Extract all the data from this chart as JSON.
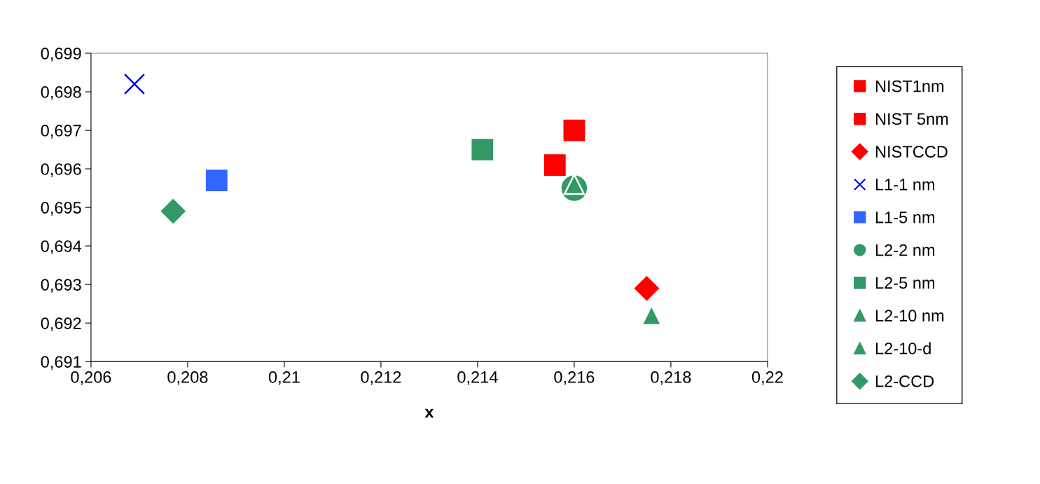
{
  "chart_data": {
    "type": "scatter",
    "xlabel": "x",
    "grid": false,
    "legend": "right",
    "xlim": [
      0.206,
      0.22
    ],
    "ylim": [
      0.691,
      0.699
    ],
    "xticks": [
      {
        "value": 0.206,
        "label": "0,206"
      },
      {
        "value": 0.208,
        "label": "0,208"
      },
      {
        "value": 0.21,
        "label": "0,21"
      },
      {
        "value": 0.212,
        "label": "0,212"
      },
      {
        "value": 0.214,
        "label": "0,214"
      },
      {
        "value": 0.216,
        "label": "0,216"
      },
      {
        "value": 0.218,
        "label": "0,218"
      },
      {
        "value": 0.22,
        "label": "0,22"
      }
    ],
    "yticks": [
      {
        "value": 0.691,
        "label": "0,691"
      },
      {
        "value": 0.692,
        "label": "0,692"
      },
      {
        "value": 0.693,
        "label": "0,693"
      },
      {
        "value": 0.694,
        "label": "0,694"
      },
      {
        "value": 0.695,
        "label": "0,695"
      },
      {
        "value": 0.696,
        "label": "0,696"
      },
      {
        "value": 0.697,
        "label": "0,697"
      },
      {
        "value": 0.698,
        "label": "0,698"
      },
      {
        "value": 0.699,
        "label": "0,699"
      }
    ],
    "series": [
      {
        "name": "NIST1nm",
        "marker": "square",
        "color": "#ff0000",
        "x": [
          0.216
        ],
        "values": [
          0.697
        ]
      },
      {
        "name": "NIST 5nm",
        "marker": "square",
        "color": "#ff0000",
        "x": [
          0.2156
        ],
        "values": [
          0.6961
        ]
      },
      {
        "name": "NISTCCD",
        "marker": "diamond",
        "color": "#ff0000",
        "x": [
          0.2175
        ],
        "values": [
          0.6929
        ]
      },
      {
        "name": "L1-1 nm",
        "marker": "cross",
        "color": "#0000ff",
        "x": [
          0.2069
        ],
        "values": [
          0.6982
        ]
      },
      {
        "name": "L1-5 nm",
        "marker": "square",
        "color": "#3366ff",
        "x": [
          0.2086
        ],
        "values": [
          0.6957
        ]
      },
      {
        "name": "L2-2 nm",
        "marker": "circle",
        "color": "#339966",
        "x": [
          0.216
        ],
        "values": [
          0.6955
        ]
      },
      {
        "name": "L2-5 nm",
        "marker": "square",
        "color": "#339966",
        "x": [
          0.2141
        ],
        "values": [
          0.6965
        ]
      },
      {
        "name": "L2-10 nm",
        "marker": "triangle",
        "color": "#339966",
        "x": [
          0.2176
        ],
        "values": [
          0.6922
        ]
      },
      {
        "name": "L2-10-d",
        "marker": "triangle",
        "color": "#339966",
        "x": [
          0.216
        ],
        "values": [
          0.6956
        ]
      },
      {
        "name": "L2-CCD",
        "marker": "diamond",
        "color": "#339966",
        "x": [
          0.2077
        ],
        "values": [
          0.6949
        ]
      }
    ]
  }
}
